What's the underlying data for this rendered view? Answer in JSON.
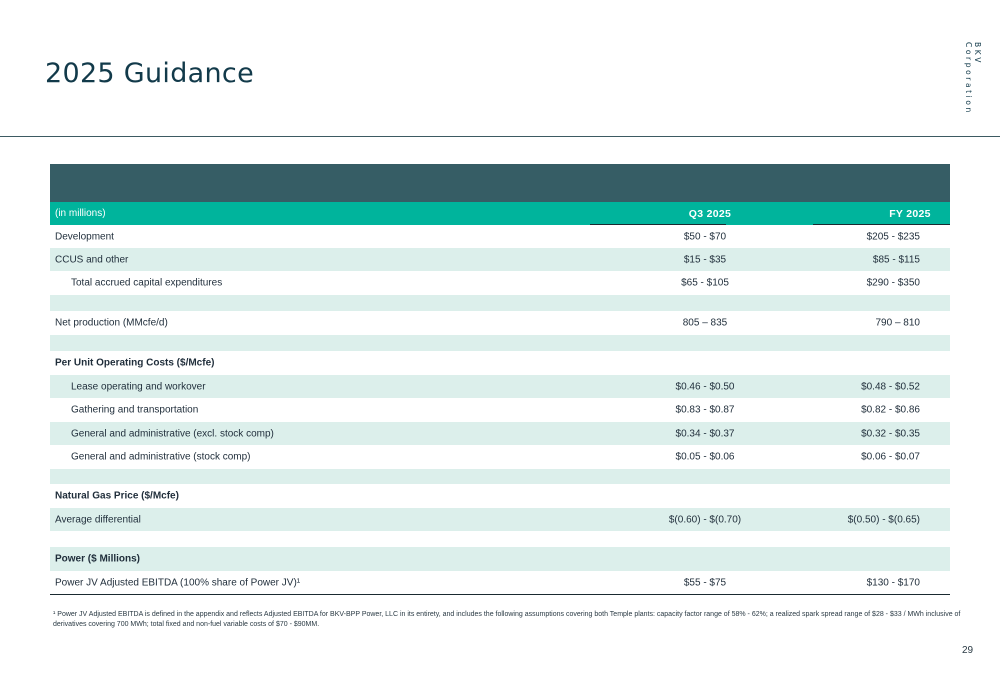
{
  "header": {
    "title": "2025 Guidance",
    "brand": "BKV Corporation"
  },
  "table": {
    "col_label": "(in millions)",
    "col_q3": "Q3 2025",
    "col_fy": "FY 2025",
    "rows": [
      {
        "label": "Development",
        "q3": "$50 - $70",
        "fy": "$205 - $235"
      },
      {
        "label": "CCUS and other",
        "q3": "$15 - $35",
        "fy": "$85 - $115"
      },
      {
        "label": "Total accrued capital expenditures",
        "q3": "$65 - $105",
        "fy": "$290 - $350"
      },
      {
        "label": "",
        "q3": "",
        "fy": ""
      },
      {
        "label": "Net production (MMcfe/d)",
        "q3": "805 – 835",
        "fy": "790 – 810"
      },
      {
        "label": "",
        "q3": "",
        "fy": ""
      },
      {
        "label": "Per Unit Operating Costs ($/Mcfe)",
        "q3": "",
        "fy": ""
      },
      {
        "label": "Lease operating and workover",
        "q3": "$0.46 - $0.50",
        "fy": "$0.48 - $0.52"
      },
      {
        "label": "Gathering and transportation",
        "q3": "$0.83 - $0.87",
        "fy": "$0.82 - $0.86"
      },
      {
        "label": "General and administrative (excl. stock comp)",
        "q3": "$0.34 - $0.37",
        "fy": "$0.32 - $0.35"
      },
      {
        "label": "General and administrative (stock comp)",
        "q3": "$0.05 - $0.06",
        "fy": "$0.06 - $0.07"
      },
      {
        "label": "",
        "q3": "",
        "fy": ""
      },
      {
        "label": "Natural Gas Price ($/Mcfe)",
        "q3": "",
        "fy": ""
      },
      {
        "label": "Average differential",
        "q3": "$(0.60) - $(0.70)",
        "fy": "$(0.50) - $(0.65)"
      },
      {
        "label": "",
        "q3": "",
        "fy": ""
      },
      {
        "label": "Power ($ Millions)",
        "q3": "",
        "fy": ""
      },
      {
        "label": "Power JV Adjusted EBITDA (100% share of Power JV)¹",
        "q3": "$55 - $75",
        "fy": "$130 - $170"
      }
    ]
  },
  "footnote": "¹ Power JV Adjusted EBITDA is defined in the appendix and reflects Adjusted EBITDA for BKV-BPP Power, LLC in its entirety, and includes the following assumptions covering both Temple plants: capacity factor range of 58% - 62%; a realized spark spread range of $28 - $33 / MWh inclusive of derivatives covering 700 MWh; total fixed and non-fuel variable costs of $70 - $90MM.",
  "page_number": "29"
}
